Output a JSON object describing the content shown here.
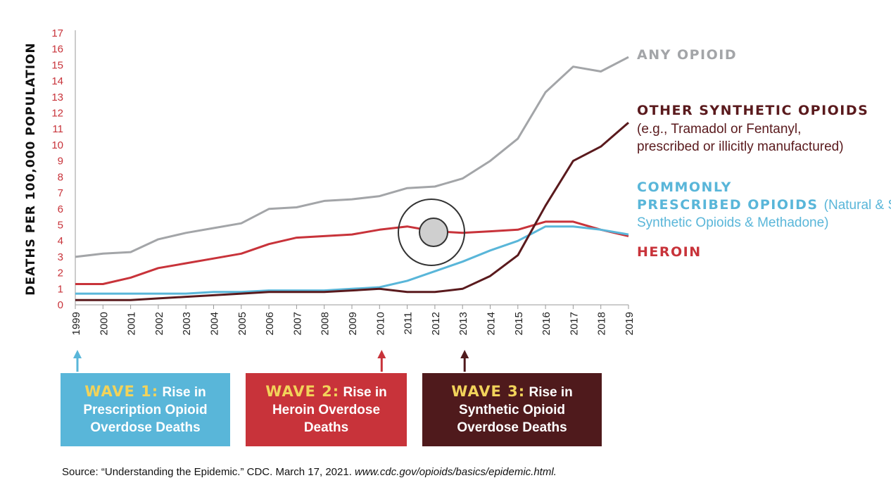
{
  "chart_data": {
    "type": "line",
    "ylabel": "DEATHS PER 100,000 POPULATION",
    "ylim": [
      0,
      17
    ],
    "yticks": [
      0,
      1,
      2,
      3,
      4,
      5,
      6,
      7,
      8,
      9,
      10,
      11,
      12,
      13,
      14,
      15,
      16,
      17
    ],
    "x": [
      "1999",
      "2000",
      "2001",
      "2002",
      "2003",
      "2004",
      "2005",
      "2006",
      "2007",
      "2008",
      "2009",
      "2010",
      "2011",
      "2012",
      "2013",
      "2014",
      "2015",
      "2016",
      "2017",
      "2018",
      "2019"
    ],
    "grid": false,
    "series": [
      {
        "key": "any",
        "name": "ANY OPIOID",
        "note": "",
        "color": "#a3a5a8",
        "values": [
          3.0,
          3.2,
          3.3,
          4.1,
          4.5,
          4.8,
          5.1,
          6.0,
          6.1,
          6.5,
          6.6,
          6.8,
          7.3,
          7.4,
          7.9,
          9.0,
          10.4,
          13.3,
          14.9,
          14.6,
          15.5
        ]
      },
      {
        "key": "synthetic",
        "name": "OTHER SYNTHETIC OPIOIDS",
        "note": "(e.g., Tramadol or Fentanyl, prescribed or illicitly manufactured)",
        "color": "#5a1a1d",
        "values": [
          0.3,
          0.3,
          0.3,
          0.4,
          0.5,
          0.6,
          0.7,
          0.8,
          0.8,
          0.8,
          0.9,
          1.0,
          0.8,
          0.8,
          1.0,
          1.8,
          3.1,
          6.2,
          9.0,
          9.9,
          11.4
        ]
      },
      {
        "key": "prescribed",
        "name": "COMMONLY PRESCRIBED OPIOIDS",
        "note": "(Natural & Semi-Synthetic Opioids & Methadone)",
        "color": "#59b6d9",
        "values": [
          0.7,
          0.7,
          0.7,
          0.7,
          0.7,
          0.8,
          0.8,
          0.9,
          0.9,
          0.9,
          1.0,
          1.1,
          1.5,
          2.1,
          2.7,
          3.4,
          4.0,
          4.9,
          4.9,
          4.7,
          4.4
        ]
      },
      {
        "key": "heroin",
        "name": "HEROIN",
        "note": "",
        "color": "#c8333a",
        "values": [
          1.3,
          1.3,
          1.7,
          2.3,
          2.6,
          2.9,
          3.2,
          3.8,
          4.2,
          4.3,
          4.4,
          4.7,
          4.9,
          4.6,
          4.5,
          4.6,
          4.7,
          5.2,
          5.2,
          4.7,
          4.3
        ]
      }
    ],
    "waves": [
      {
        "title": "WAVE 1:",
        "text_line1": "Rise in",
        "text_line2": "Prescription Opioid",
        "text_line3": "Overdose Deaths",
        "year": "1999",
        "color": "#59b6d9"
      },
      {
        "title": "WAVE 2:",
        "text_line1": "Rise in",
        "text_line2": "Heroin Overdose",
        "text_line3": "Deaths",
        "year": "2010",
        "color": "#c8333a"
      },
      {
        "title": "WAVE 3:",
        "text_line1": "Rise in",
        "text_line2": "Synthetic Opioid",
        "text_line3": "Overdose Deaths",
        "year": "2013",
        "color": "#4f1a1c"
      }
    ]
  },
  "source": {
    "prefix": "Source: “Understanding the Epidemic.” CDC. March 17, 2021. ",
    "url": "www.cdc.gov/opioids/basics/epidemic.html."
  }
}
